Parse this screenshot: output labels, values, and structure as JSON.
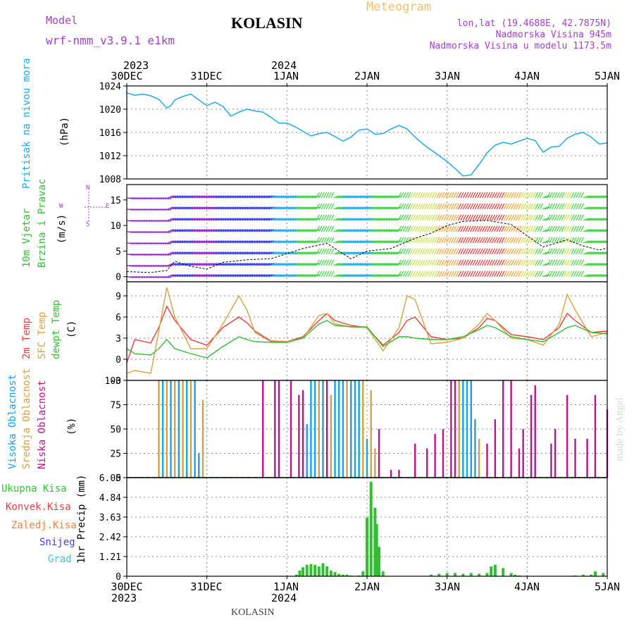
{
  "header": {
    "model_label": "Model",
    "model_name": "wrf-nmm_v3.9.1  e1km",
    "title": "KOLASIN",
    "meteogram": "Meteogram",
    "lonlat": "lon,lat (19.4688E, 42.7875N)",
    "elev": "Nadmorska Visina 945m",
    "elev_model": "Nadmorska Visina u modelu 1173.5m",
    "footer_station": "KOLASIN",
    "credit": "made by Angel"
  },
  "time_axis": {
    "year_start": "2023",
    "year_mid": "2024",
    "ticks": [
      "30DEC",
      "31DEC",
      "1JAN",
      "2JAN",
      "3JAN",
      "4JAN",
      "5JAN"
    ]
  },
  "panels": {
    "pressure": {
      "label": "Pritisak na nivou mora",
      "unit": "(hPa)"
    },
    "wind": {
      "label1": "10m Vjetar",
      "label2": "Brzina i Pravac",
      "unit": "(m/s)",
      "compass": [
        "N",
        "E",
        "S",
        "W"
      ]
    },
    "temp": {
      "label1": "2m Temp",
      "label2": "SFC Temp",
      "label3": "dewpt Temp",
      "unit": "(C)"
    },
    "cloud": {
      "label1": "Visoka Oblacnost",
      "label2": "Srednja Oblacnost",
      "label3": "Niska Oblacnost",
      "unit": "(%)"
    },
    "precip": {
      "unit": "1hr Precip (mm)",
      "legend": [
        "Ukupna Kisa",
        "Konvek.Kisa",
        "Zaledj.Kisa",
        "Snijeg",
        "Grad"
      ]
    }
  },
  "colors": {
    "pressure": "#20a8e8",
    "temp2m": "#e83c3c",
    "sfc": "#d8a040",
    "dewpt": "#30c030",
    "cloud_high": "#18a0e8",
    "cloud_mid": "#d8a040",
    "cloud_low": "#c0108c",
    "precip": "#30c030",
    "purple_text": "#a040c8"
  },
  "chart_data": [
    {
      "type": "line",
      "name": "pressure",
      "ylim": [
        1008,
        1024
      ],
      "yticks": [
        "1024",
        "1020",
        "1016",
        "1012",
        "1008"
      ],
      "x_days": [
        0,
        0.1,
        0.2,
        0.3,
        0.4,
        0.5,
        0.55,
        0.6,
        0.7,
        0.8,
        0.9,
        1.0,
        1.1,
        1.2,
        1.3,
        1.4,
        1.5,
        1.6,
        1.7,
        1.8,
        1.9,
        2.0,
        2.1,
        2.2,
        2.3,
        2.4,
        2.5,
        2.6,
        2.7,
        2.8,
        2.9,
        3.0,
        3.1,
        3.2,
        3.3,
        3.4,
        3.5,
        3.6,
        3.7,
        3.8,
        3.9,
        4.0,
        4.1,
        4.2,
        4.3,
        4.4,
        4.5,
        4.6,
        4.7,
        4.8,
        4.9,
        5.0,
        5.1,
        5.2,
        5.3,
        5.4,
        5.5,
        5.6,
        5.7,
        5.8,
        5.9,
        6.0
      ],
      "values": [
        1022.8,
        1022.4,
        1022.6,
        1022.3,
        1021.7,
        1020.2,
        1020.6,
        1021.6,
        1022.2,
        1022.6,
        1021.6,
        1020.6,
        1021.2,
        1020.5,
        1018.8,
        1019.5,
        1020.0,
        1019.7,
        1019.5,
        1018.6,
        1017.6,
        1017.6,
        1017.0,
        1016.2,
        1015.4,
        1015.8,
        1016.0,
        1015.3,
        1014.5,
        1015.2,
        1016.4,
        1016.6,
        1015.7,
        1015.8,
        1016.6,
        1017.2,
        1016.6,
        1015.2,
        1014.0,
        1013.0,
        1012.0,
        1011.0,
        1009.8,
        1008.5,
        1008.7,
        1010.5,
        1012.5,
        1013.8,
        1014.3,
        1014.0,
        1014.5,
        1015.0,
        1014.6,
        1012.6,
        1013.5,
        1013.6,
        1015.0,
        1015.7,
        1016.0,
        1015.2,
        1014.0,
        1014.2
      ]
    },
    {
      "type": "line",
      "name": "wind",
      "ylim": [
        -1,
        18
      ],
      "yticks": [
        "15",
        "10",
        "5",
        "0"
      ],
      "x_days": [
        0,
        0.3,
        0.5,
        0.6,
        0.8,
        1.0,
        1.2,
        1.5,
        1.8,
        2.0,
        2.2,
        2.5,
        2.8,
        3.0,
        3.3,
        3.6,
        3.8,
        4.0,
        4.2,
        4.5,
        4.8,
        5.0,
        5.2,
        5.5,
        5.7,
        5.9,
        6.0
      ],
      "values": [
        1.0,
        0.8,
        1.2,
        3.0,
        2.0,
        1.5,
        2.8,
        3.3,
        3.5,
        4.5,
        5.5,
        6.5,
        3.5,
        5.0,
        5.5,
        7.5,
        8.5,
        10.0,
        10.8,
        11.0,
        10.2,
        8.0,
        5.8,
        7.2,
        6.0,
        5.2,
        5.6
      ]
    },
    {
      "type": "line",
      "name": "temperature",
      "ylim": [
        -3,
        11
      ],
      "yticks": [
        "9",
        "6",
        "3",
        "0",
        "-3"
      ],
      "x_days": [
        0,
        0.1,
        0.3,
        0.4,
        0.5,
        0.6,
        0.8,
        1.0,
        1.2,
        1.4,
        1.5,
        1.6,
        1.8,
        2.0,
        2.2,
        2.4,
        2.5,
        2.6,
        2.8,
        3.0,
        3.2,
        3.4,
        3.5,
        3.6,
        3.8,
        4.0,
        4.2,
        4.4,
        4.5,
        4.6,
        4.8,
        5.0,
        5.2,
        5.4,
        5.5,
        5.6,
        5.8,
        6.0
      ],
      "series": [
        {
          "name": "2m Temp",
          "values": [
            -0.5,
            2.8,
            2.3,
            4.5,
            7.5,
            5.5,
            2.8,
            2.0,
            4.5,
            6.0,
            5.2,
            4.0,
            2.6,
            2.5,
            3.2,
            5.5,
            6.5,
            5.5,
            4.8,
            4.5,
            2.0,
            3.8,
            5.5,
            6.0,
            3.2,
            2.8,
            3.0,
            4.5,
            5.8,
            5.5,
            3.5,
            3.2,
            2.8,
            4.5,
            6.5,
            5.5,
            3.8,
            4.0
          ]
        },
        {
          "name": "SFC Temp",
          "values": [
            -2.0,
            -1.6,
            -2.0,
            4.0,
            10.2,
            6.0,
            1.5,
            1.5,
            5.0,
            9.0,
            7.0,
            3.8,
            2.5,
            2.5,
            3.0,
            6.2,
            6.5,
            5.0,
            4.6,
            4.5,
            1.2,
            4.5,
            9.0,
            8.5,
            2.2,
            2.4,
            3.0,
            5.0,
            6.5,
            5.5,
            3.0,
            2.8,
            2.0,
            5.0,
            9.2,
            7.0,
            3.2,
            3.8
          ]
        },
        {
          "name": "dewpt Temp",
          "values": [
            1.5,
            0.8,
            0.6,
            1.5,
            2.8,
            1.5,
            0.8,
            0.2,
            1.8,
            3.2,
            2.8,
            2.5,
            2.4,
            2.4,
            3.0,
            5.0,
            5.5,
            4.8,
            4.6,
            4.6,
            1.8,
            3.2,
            3.2,
            3.0,
            2.8,
            2.8,
            3.2,
            4.2,
            4.8,
            4.5,
            3.2,
            2.8,
            2.5,
            3.8,
            4.5,
            4.8,
            3.8,
            3.6
          ]
        }
      ]
    },
    {
      "type": "bar",
      "name": "cloud",
      "ylim": [
        0,
        100
      ],
      "yticks": [
        "100",
        "75",
        "50",
        "25",
        "0"
      ],
      "series": [
        {
          "name": "Visoka Oblacnost",
          "x_days": [
            0.45,
            0.55,
            0.65,
            0.75,
            0.85,
            0.9,
            2.25,
            2.3,
            2.35,
            2.45,
            2.5,
            2.6,
            2.65,
            2.7,
            2.8,
            2.85,
            2.9,
            3.0,
            4.2,
            4.25,
            4.3,
            4.35
          ],
          "values": [
            100,
            100,
            100,
            100,
            100,
            25,
            55,
            100,
            100,
            100,
            80,
            100,
            100,
            100,
            100,
            100,
            100,
            40,
            100,
            100,
            100,
            60
          ]
        },
        {
          "name": "Srednja Oblacnost",
          "x_days": [
            0.4,
            0.5,
            0.6,
            0.7,
            0.8,
            0.95,
            2.2,
            2.4,
            2.55,
            2.75,
            2.95,
            3.05,
            3.1,
            4.15,
            4.4
          ],
          "values": [
            100,
            100,
            100,
            100,
            100,
            80,
            85,
            100,
            85,
            100,
            100,
            90,
            30,
            100,
            40
          ]
        },
        {
          "name": "Niska Oblacnost",
          "x_days": [
            1.7,
            1.85,
            1.9,
            2.05,
            2.15,
            2.2,
            2.5,
            3.15,
            3.3,
            3.4,
            3.6,
            3.75,
            3.85,
            3.95,
            4.05,
            4.1,
            4.5,
            4.6,
            4.7,
            4.8,
            4.9,
            4.95,
            5.05,
            5.1,
            5.3,
            5.35,
            5.5,
            5.6,
            5.75,
            5.85,
            6.0
          ],
          "values": [
            100,
            100,
            100,
            100,
            85,
            90,
            100,
            50,
            8,
            8,
            35,
            30,
            45,
            50,
            100,
            100,
            35,
            60,
            100,
            100,
            30,
            50,
            85,
            95,
            35,
            50,
            85,
            40,
            40,
            85,
            70
          ]
        }
      ]
    },
    {
      "type": "bar",
      "name": "precip",
      "ylim": [
        0,
        6.05
      ],
      "yticks": [
        "6.05",
        "4.84",
        "3.63",
        "2.42",
        "1.21",
        "0"
      ],
      "x_days": [
        2.12,
        2.16,
        2.2,
        2.25,
        2.3,
        2.35,
        2.4,
        2.45,
        2.5,
        2.55,
        2.6,
        2.65,
        2.7,
        2.75,
        2.8,
        2.9,
        2.95,
        3.0,
        3.05,
        3.1,
        3.12,
        3.15,
        3.2,
        3.8,
        3.9,
        4.0,
        4.1,
        4.2,
        4.3,
        4.4,
        4.5,
        4.55,
        4.6,
        4.7,
        4.8,
        4.85,
        4.9,
        5.6,
        5.7,
        5.8,
        5.85,
        5.95
      ],
      "values": [
        0.1,
        0.35,
        0.55,
        0.7,
        0.75,
        0.7,
        0.6,
        0.8,
        0.6,
        0.35,
        0.25,
        0.15,
        0.1,
        0.1,
        0.05,
        0.05,
        0.3,
        3.6,
        5.8,
        4.2,
        3.2,
        1.8,
        0.3,
        0.1,
        0.15,
        0.2,
        0.2,
        0.15,
        0.2,
        0.15,
        0.2,
        0.6,
        0.7,
        0.5,
        0.2,
        0.1,
        0.05,
        0.05,
        0.1,
        0.1,
        0.3,
        0.2
      ]
    }
  ]
}
